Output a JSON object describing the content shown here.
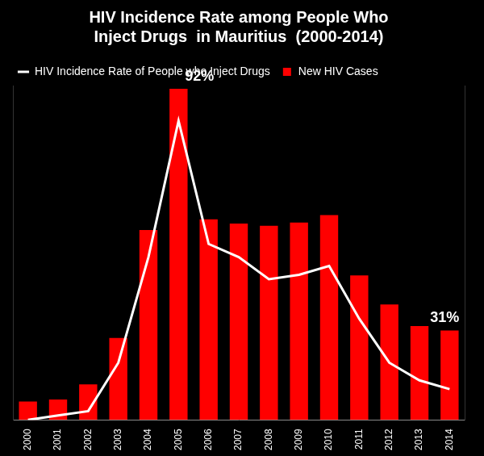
{
  "chart_data": {
    "type": "bar",
    "title": [
      "HIV Incidence Rate among People Who",
      "Inject Drugs  in Mauritius  (2000-2014)"
    ],
    "categories": [
      "2000",
      "2001",
      "2002",
      "2003",
      "2004",
      "2005",
      "2006",
      "2007",
      "2008",
      "2009",
      "2010",
      "2011",
      "2012",
      "2013",
      "2014"
    ],
    "series": [
      {
        "name": "New HIV Cases",
        "type": "bar",
        "color": "#ff0000",
        "values": [
          17,
          19,
          33,
          76,
          176,
          307,
          186,
          182,
          180,
          183,
          190,
          134,
          107,
          87,
          83
        ]
      },
      {
        "name": "HIV Incidence Rate of People who Inject Drugs",
        "type": "line",
        "color": "#ffffff",
        "axis": "y2",
        "marker": "none",
        "line_style": "solid",
        "data_labels": true,
        "values": [
          24,
          25,
          26,
          37,
          61,
          92,
          64,
          61,
          56,
          57,
          59,
          47,
          37,
          33,
          31
        ],
        "value_labels": [
          null,
          null,
          null,
          null,
          null,
          "92%",
          null,
          null,
          null,
          null,
          null,
          null,
          null,
          null,
          "31%"
        ]
      }
    ],
    "ylim": [
      0,
      310
    ],
    "y2lim": [
      24,
      100
    ],
    "grid": false,
    "legend": "top",
    "tick_labels": "x"
  }
}
